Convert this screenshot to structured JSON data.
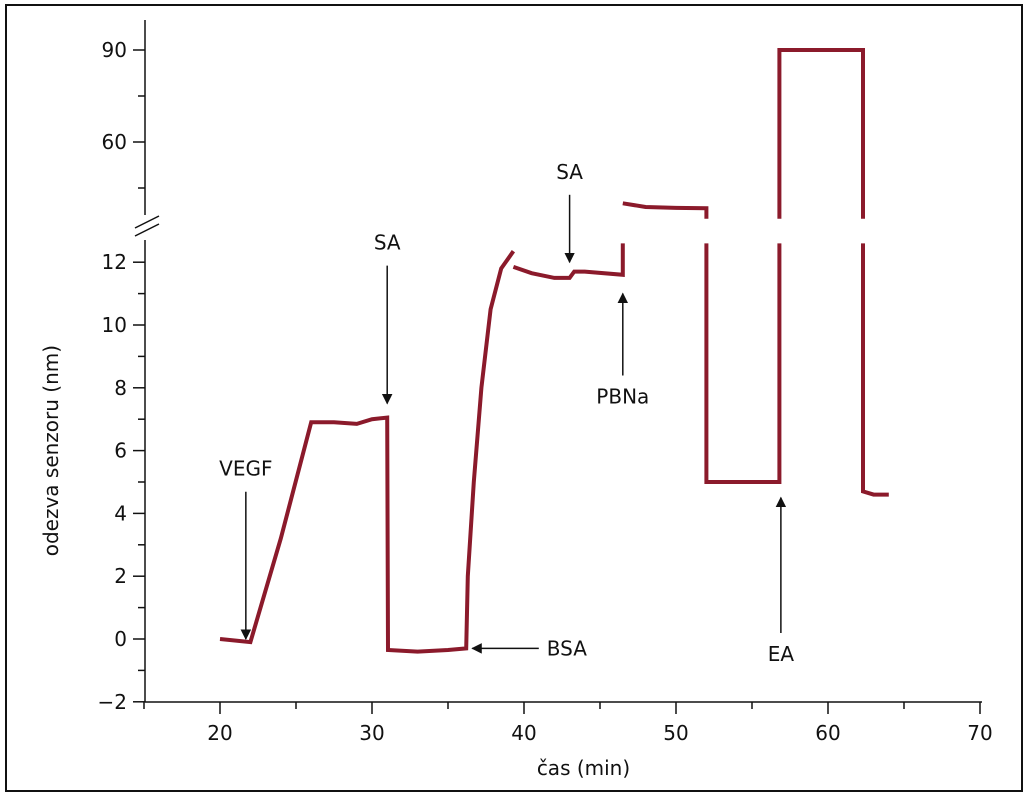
{
  "chart_data": {
    "type": "line",
    "title": "",
    "xlabel": "čas (min)",
    "ylabel": "odezva senzoru (nm)",
    "xlim": [
      15,
      70
    ],
    "ylim_lower": [
      -2,
      13
    ],
    "ylim_upper_ticks": [
      60,
      90
    ],
    "axis_break": true,
    "grid": false,
    "x_ticks": [
      20,
      30,
      40,
      50,
      60,
      70
    ],
    "x_tick_labels": [
      "20",
      "30",
      "40",
      "50",
      "60",
      "70"
    ],
    "y_ticks": [
      -2,
      0,
      2,
      4,
      6,
      8,
      10,
      12,
      60,
      90
    ],
    "y_tick_labels": [
      "−2",
      "0",
      "2",
      "4",
      "6",
      "8",
      "10",
      "12",
      "60",
      "90"
    ],
    "color": "#8b1a2b",
    "series": [
      {
        "segments": [
          [
            [
              20,
              0.0
            ],
            [
              22,
              -0.1
            ],
            [
              24,
              3.2
            ],
            [
              26,
              6.9
            ],
            [
              27.5,
              6.9
            ],
            [
              29,
              6.85
            ],
            [
              30,
              7.0
            ],
            [
              31,
              7.05
            ],
            [
              31.05,
              -0.35
            ],
            [
              33,
              -0.4
            ],
            [
              35,
              -0.35
            ],
            [
              36.2,
              -0.3
            ],
            [
              36.3,
              2.0
            ],
            [
              36.7,
              5.0
            ],
            [
              37.2,
              8.0
            ],
            [
              37.8,
              10.5
            ],
            [
              38.5,
              11.8
            ],
            [
              39.3,
              12.35
            ]
          ],
          [
            [
              39.3,
              11.85
            ],
            [
              40.5,
              11.65
            ],
            [
              42,
              11.5
            ],
            [
              43,
              11.5
            ],
            [
              43.3,
              11.7
            ],
            [
              44,
              11.7
            ],
            [
              46.5,
              11.6
            ],
            [
              46.5,
              12.6
            ]
          ],
          [
            [
              46.5,
              40
            ],
            [
              48,
              38.8
            ],
            [
              50,
              38.5
            ],
            [
              52,
              38.4
            ],
            [
              52,
              35
            ]
          ],
          [
            [
              52,
              12.6
            ],
            [
              52,
              5.0
            ],
            [
              56.8,
              5.0
            ],
            [
              56.8,
              12.6
            ]
          ],
          [
            [
              56.8,
              35
            ],
            [
              56.8,
              90
            ],
            [
              62.3,
              90
            ],
            [
              62.3,
              35
            ]
          ],
          [
            [
              62.3,
              12.6
            ],
            [
              62.3,
              4.7
            ],
            [
              63,
              4.6
            ],
            [
              64,
              4.6
            ]
          ]
        ]
      }
    ],
    "annotations": [
      {
        "label": "VEGF",
        "x": 21.7,
        "y": 0.0,
        "direction": "down",
        "text_y": 5.2
      },
      {
        "label": "SA",
        "x": 31.0,
        "y": 7.5,
        "direction": "down",
        "text_y": 12.4
      },
      {
        "label": "BSA",
        "x": 36.6,
        "y": -0.3,
        "direction": "left",
        "text_x": 41.5
      },
      {
        "label": "SA",
        "x": 43.0,
        "y": 12.0,
        "direction": "down",
        "text_y": 48
      },
      {
        "label": "PBNa",
        "x": 46.5,
        "y": 11.0,
        "direction": "up",
        "text_y": 7.5
      },
      {
        "label": "EA",
        "x": 56.9,
        "y": 4.5,
        "direction": "up",
        "text_y": -0.7
      }
    ]
  }
}
